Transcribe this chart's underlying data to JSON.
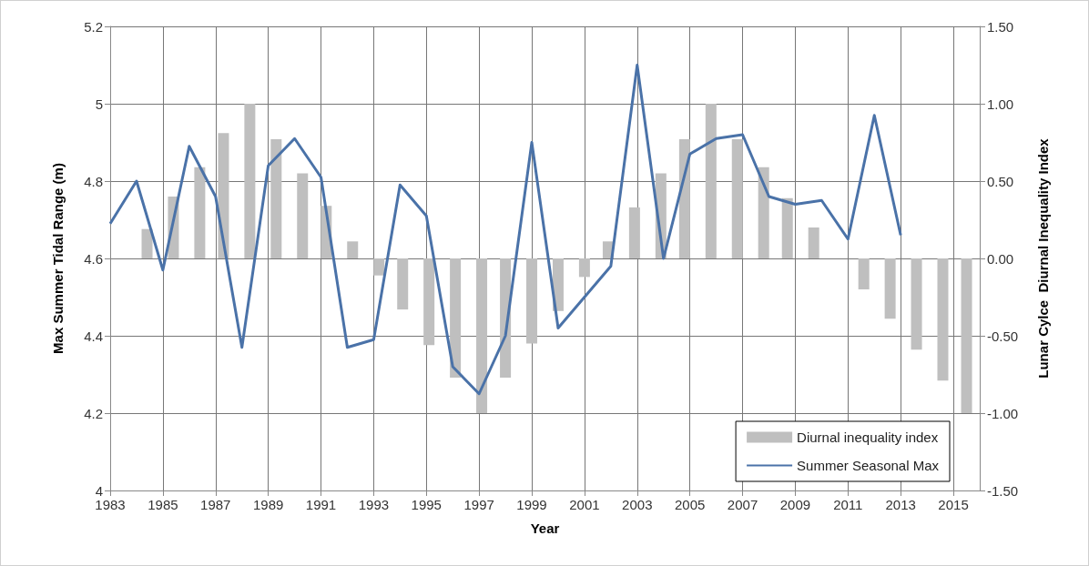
{
  "chart_data": {
    "type": "line",
    "xlabel": "Year",
    "ylabel": "Max Summer Tidal Range (m)",
    "y2label": "Lunar Cylce  Diurnal Inequality Index",
    "xlim": [
      1983,
      2016
    ],
    "xticks": [
      1983,
      1985,
      1987,
      1989,
      1991,
      1993,
      1995,
      1997,
      1999,
      2001,
      2003,
      2005,
      2007,
      2009,
      2011,
      2013,
      2015
    ],
    "ylim": [
      4,
      5.2
    ],
    "yticks": [
      4,
      4.2,
      4.4,
      4.6,
      4.8,
      5,
      5.2
    ],
    "y2lim": [
      -1.5,
      1.5
    ],
    "y2ticks": [
      {
        "value": -1.5,
        "label": "-1.50"
      },
      {
        "value": -1,
        "label": "-1.00"
      },
      {
        "value": -0.5,
        "label": "-0.50"
      },
      {
        "value": 0,
        "label": "0.00"
      },
      {
        "value": 0.5,
        "label": "0.50"
      },
      {
        "value": 1,
        "label": "1.00"
      },
      {
        "value": 1.5,
        "label": "1.50"
      }
    ],
    "grid": true,
    "legend": "bottom right",
    "marker": "none",
    "series": [
      {
        "name": "Diurnal inequality index",
        "type": "bar",
        "axis": "y2",
        "color": "#bfbfbf",
        "x": [
          1984.4,
          1985.4,
          1986.4,
          1987.3,
          1988.3,
          1989.3,
          1990.3,
          1991.2,
          1992.2,
          1993.2,
          1994.1,
          1995.1,
          1996.1,
          1997.1,
          1998.0,
          1999.0,
          2000.0,
          2001.0,
          2001.9,
          2002.9,
          2003.9,
          2004.8,
          2005.8,
          2006.8,
          2007.8,
          2008.7,
          2009.7,
          2010.7,
          2011.6,
          2012.6,
          2013.6,
          2014.6,
          2015.5
        ],
        "values": [
          0.19,
          0.4,
          0.59,
          0.81,
          1.0,
          0.77,
          0.55,
          0.34,
          0.11,
          -0.11,
          -0.33,
          -0.56,
          -0.77,
          -1.0,
          -0.77,
          -0.55,
          -0.34,
          -0.12,
          0.11,
          0.33,
          0.55,
          0.77,
          1.0,
          0.77,
          0.59,
          0.39,
          0.2,
          0,
          -0.2,
          -0.39,
          -0.59,
          -0.79,
          -1.0
        ]
      },
      {
        "name": "Summer Seasonal Max",
        "color": "#4a72a8",
        "x": [
          1983,
          1984,
          1985,
          1986,
          1987,
          1988,
          1989,
          1990,
          1991,
          1992,
          1993,
          1994,
          1995,
          1996,
          1997,
          1998,
          1999,
          2000,
          2001,
          2002,
          2003,
          2004,
          2005,
          2006,
          2007,
          2008,
          2009,
          2010,
          2011,
          2012,
          2013
        ],
        "values": [
          4.69,
          4.8,
          4.57,
          4.89,
          4.76,
          4.37,
          4.84,
          4.91,
          4.81,
          4.37,
          4.39,
          4.79,
          4.71,
          4.32,
          4.25,
          4.4,
          4.9,
          4.42,
          4.5,
          4.58,
          5.1,
          4.6,
          4.87,
          4.91,
          4.92,
          4.76,
          4.74,
          4.75,
          4.65,
          4.97,
          4.66
        ]
      }
    ]
  }
}
